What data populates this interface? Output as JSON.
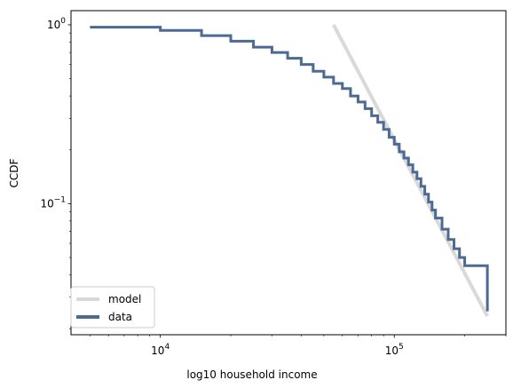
{
  "chart_data": {
    "type": "line",
    "title": "",
    "xlabel": "log10 household income",
    "ylabel": "CCDF",
    "x_scale": "log",
    "y_scale": "log",
    "xlim": [
      4150,
      300000
    ],
    "ylim": [
      0.0185,
      1.2
    ],
    "x_tick_labels": [
      {
        "value": 10000,
        "base": "10",
        "exp": "4"
      },
      {
        "value": 100000,
        "base": "10",
        "exp": "5"
      }
    ],
    "y_tick_labels": [
      {
        "value": 1.0,
        "base": "10",
        "exp": "0"
      },
      {
        "value": 0.1,
        "base": "10",
        "exp": "−1"
      }
    ],
    "legend": {
      "placement": "lower-left",
      "entries": [
        "model",
        "data"
      ]
    },
    "grid": false,
    "series": [
      {
        "name": "model",
        "color": "#d9d9d9",
        "x": [
          55000,
          250000
        ],
        "y": [
          1.0,
          0.0235
        ]
      },
      {
        "name": "data",
        "color": "#4c6a92",
        "step": true,
        "x": [
          5000,
          10000,
          15000,
          20000,
          25000,
          30000,
          35000,
          40000,
          45000,
          50000,
          55000,
          60000,
          65000,
          70000,
          75000,
          80000,
          85000,
          90000,
          95000,
          100000,
          105000,
          110000,
          115000,
          120000,
          125000,
          130000,
          135000,
          140000,
          145000,
          150000,
          160000,
          170000,
          180000,
          190000,
          200000,
          250000
        ],
        "y": [
          0.97,
          0.93,
          0.87,
          0.81,
          0.75,
          0.7,
          0.65,
          0.6,
          0.55,
          0.51,
          0.47,
          0.44,
          0.4,
          0.37,
          0.34,
          0.31,
          0.285,
          0.26,
          0.235,
          0.215,
          0.195,
          0.18,
          0.165,
          0.15,
          0.138,
          0.125,
          0.113,
          0.102,
          0.092,
          0.083,
          0.072,
          0.063,
          0.056,
          0.05,
          0.045,
          0.025
        ]
      }
    ]
  }
}
